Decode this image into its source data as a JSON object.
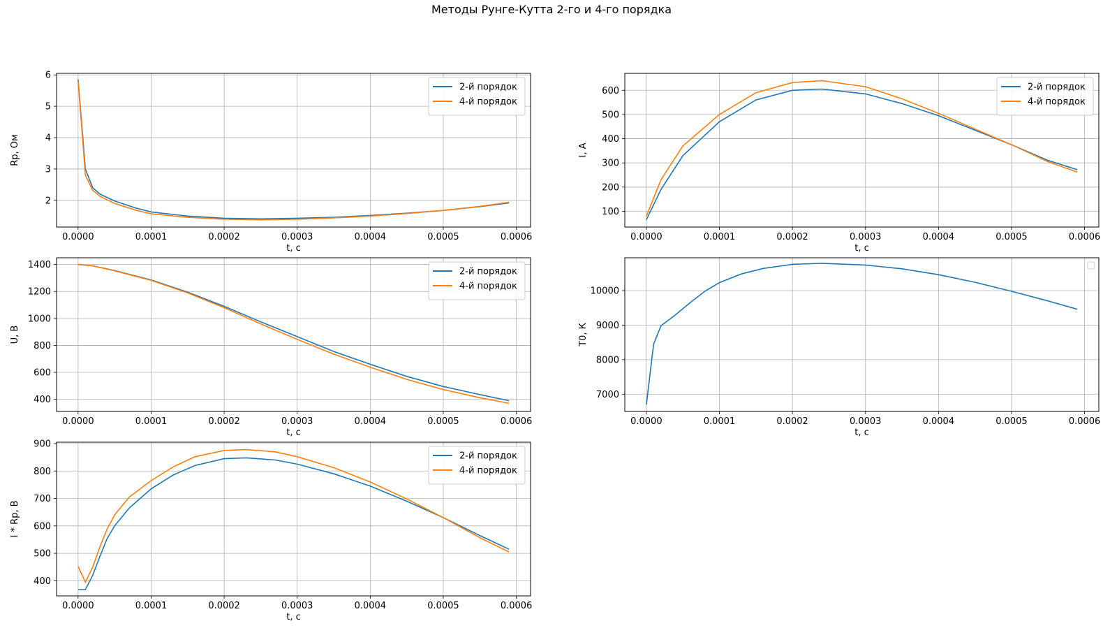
{
  "suptitle": "Методы Рунге-Кутта 2-го и 4-го порядка",
  "colors": {
    "series2": "#1f77b4",
    "series4": "#ff7f0e",
    "grid": "#b0b0b0",
    "axis": "#000000"
  },
  "chart_data": [
    {
      "id": "rp",
      "type": "line",
      "xlabel": "t, с",
      "ylabel": "Rp, Ом",
      "xlim": [
        -2.95e-05,
        0.0006195
      ],
      "ylim": [
        1.15,
        6.05
      ],
      "xticks": [
        0,
        0.0001,
        0.0002,
        0.0003,
        0.0004,
        0.0005,
        0.0006
      ],
      "xtick_labels": [
        "0.0000",
        "0.0001",
        "0.0002",
        "0.0003",
        "0.0004",
        "0.0005",
        "0.0006"
      ],
      "yticks": [
        2,
        3,
        4,
        5,
        6
      ],
      "ytick_labels": [
        "2",
        "3",
        "4",
        "5",
        "6"
      ],
      "grid": true,
      "legend": "upper right",
      "series": [
        {
          "name": "2-й порядок",
          "x": [
            0,
            1e-05,
            2e-05,
            3e-05,
            5e-05,
            8e-05,
            0.0001,
            0.00015,
            0.0002,
            0.00025,
            0.0003,
            0.00035,
            0.0004,
            0.00045,
            0.0005,
            0.00055,
            0.00059
          ],
          "y": [
            5.85,
            3.0,
            2.4,
            2.2,
            1.98,
            1.75,
            1.63,
            1.5,
            1.43,
            1.41,
            1.43,
            1.46,
            1.52,
            1.59,
            1.68,
            1.8,
            1.92
          ]
        },
        {
          "name": "4-й порядок",
          "x": [
            0,
            1e-05,
            2e-05,
            3e-05,
            5e-05,
            8e-05,
            0.0001,
            0.00015,
            0.0002,
            0.00025,
            0.0003,
            0.00035,
            0.0004,
            0.00045,
            0.0005,
            0.00055,
            0.00059
          ],
          "y": [
            5.8,
            2.8,
            2.32,
            2.13,
            1.9,
            1.68,
            1.57,
            1.46,
            1.4,
            1.38,
            1.4,
            1.44,
            1.5,
            1.58,
            1.68,
            1.81,
            1.94
          ]
        }
      ]
    },
    {
      "id": "i",
      "type": "line",
      "xlabel": "t, с",
      "ylabel": "I, А",
      "xlim": [
        -2.95e-05,
        0.0006195
      ],
      "ylim": [
        35,
        670
      ],
      "xticks": [
        0,
        0.0001,
        0.0002,
        0.0003,
        0.0004,
        0.0005,
        0.0006
      ],
      "xtick_labels": [
        "0.0000",
        "0.0001",
        "0.0002",
        "0.0003",
        "0.0004",
        "0.0005",
        "0.0006"
      ],
      "yticks": [
        100,
        200,
        300,
        400,
        500,
        600
      ],
      "ytick_labels": [
        "100",
        "200",
        "300",
        "400",
        "500",
        "600"
      ],
      "grid": true,
      "legend": "upper right",
      "series": [
        {
          "name": "2-й порядок",
          "x": [
            0,
            2e-05,
            5e-05,
            0.0001,
            0.00015,
            0.0002,
            0.00024,
            0.0003,
            0.00035,
            0.0004,
            0.00045,
            0.0005,
            0.00055,
            0.00059
          ],
          "y": [
            65,
            190,
            330,
            470,
            560,
            600,
            605,
            585,
            545,
            495,
            435,
            375,
            310,
            272
          ]
        },
        {
          "name": "4-й порядок",
          "x": [
            0,
            2e-05,
            5e-05,
            0.0001,
            0.00015,
            0.0002,
            0.00024,
            0.0003,
            0.00035,
            0.0004,
            0.00045,
            0.0005,
            0.00055,
            0.00059
          ],
          "y": [
            80,
            230,
            370,
            500,
            590,
            632,
            640,
            615,
            565,
            505,
            440,
            375,
            305,
            262
          ]
        }
      ]
    },
    {
      "id": "u",
      "type": "line",
      "xlabel": "t, с",
      "ylabel": "U, В",
      "xlim": [
        -2.95e-05,
        0.0006195
      ],
      "ylim": [
        310,
        1450
      ],
      "xticks": [
        0,
        0.0001,
        0.0002,
        0.0003,
        0.0004,
        0.0005,
        0.0006
      ],
      "xtick_labels": [
        "0.0000",
        "0.0001",
        "0.0002",
        "0.0003",
        "0.0004",
        "0.0005",
        "0.0006"
      ],
      "yticks": [
        400,
        600,
        800,
        1000,
        1200,
        1400
      ],
      "ytick_labels": [
        "400",
        "600",
        "800",
        "1000",
        "1200",
        "1400"
      ],
      "grid": true,
      "legend": "upper right",
      "series": [
        {
          "name": "2-й порядок",
          "x": [
            0,
            2e-05,
            5e-05,
            0.0001,
            0.00015,
            0.0002,
            0.00025,
            0.0003,
            0.00035,
            0.0004,
            0.00045,
            0.0005,
            0.00055,
            0.00059
          ],
          "y": [
            1400,
            1390,
            1355,
            1285,
            1195,
            1090,
            975,
            865,
            755,
            660,
            570,
            495,
            435,
            390
          ]
        },
        {
          "name": "4-й порядок",
          "x": [
            0,
            2e-05,
            5e-05,
            0.0001,
            0.00015,
            0.0002,
            0.00025,
            0.0003,
            0.00035,
            0.0004,
            0.00045,
            0.0005,
            0.00055,
            0.00059
          ],
          "y": [
            1400,
            1390,
            1353,
            1282,
            1190,
            1080,
            960,
            845,
            735,
            638,
            548,
            472,
            412,
            370
          ]
        }
      ]
    },
    {
      "id": "t0",
      "type": "line",
      "xlabel": "t, с",
      "ylabel": "T0, К",
      "xlim": [
        -2.95e-05,
        0.0006195
      ],
      "ylim": [
        6500,
        10950
      ],
      "xticks": [
        0,
        0.0001,
        0.0002,
        0.0003,
        0.0004,
        0.0005,
        0.0006
      ],
      "xtick_labels": [
        "0.0000",
        "0.0001",
        "0.0002",
        "0.0003",
        "0.0004",
        "0.0005",
        "0.0006"
      ],
      "yticks": [
        7000,
        8000,
        9000,
        10000
      ],
      "ytick_labels": [
        "7000",
        "8000",
        "9000",
        "10000"
      ],
      "grid": true,
      "legend": "upper right (empty)",
      "series": [
        {
          "name": "",
          "x": [
            0,
            1e-05,
            2e-05,
            4e-05,
            6e-05,
            8e-05,
            0.0001,
            0.00013,
            0.00016,
            0.0002,
            0.00024,
            0.0003,
            0.00035,
            0.0004,
            0.00045,
            0.0005,
            0.00055,
            0.00059
          ],
          "y": [
            6700,
            8450,
            8980,
            9300,
            9650,
            9980,
            10230,
            10480,
            10640,
            10760,
            10790,
            10740,
            10630,
            10460,
            10240,
            9980,
            9700,
            9460
          ]
        }
      ]
    },
    {
      "id": "irp",
      "type": "line",
      "xlabel": "t, с",
      "ylabel": "I * Rp, В",
      "xlim": [
        -2.95e-05,
        0.0006195
      ],
      "ylim": [
        345,
        905
      ],
      "xticks": [
        0,
        0.0001,
        0.0002,
        0.0003,
        0.0004,
        0.0005,
        0.0006
      ],
      "xtick_labels": [
        "0.0000",
        "0.0001",
        "0.0002",
        "0.0003",
        "0.0004",
        "0.0005",
        "0.0006"
      ],
      "yticks": [
        400,
        500,
        600,
        700,
        800,
        900
      ],
      "ytick_labels": [
        "400",
        "500",
        "600",
        "700",
        "800",
        "900"
      ],
      "grid": true,
      "legend": "upper right",
      "series": [
        {
          "name": "2-й порядок",
          "x": [
            0,
            1e-05,
            2e-05,
            3e-05,
            4e-05,
            5e-05,
            7e-05,
            0.0001,
            0.00013,
            0.00016,
            0.0002,
            0.00023,
            0.00027,
            0.0003,
            0.00035,
            0.0004,
            0.00045,
            0.0005,
            0.00055,
            0.00059
          ],
          "y": [
            368,
            368,
            420,
            490,
            555,
            600,
            665,
            735,
            785,
            820,
            845,
            848,
            840,
            825,
            790,
            745,
            690,
            630,
            565,
            515
          ]
        },
        {
          "name": "4-й порядок",
          "x": [
            0,
            1e-05,
            2e-05,
            3e-05,
            4e-05,
            5e-05,
            7e-05,
            0.0001,
            0.00013,
            0.00016,
            0.0002,
            0.00023,
            0.00027,
            0.0003,
            0.00035,
            0.0004,
            0.00045,
            0.0005,
            0.00055,
            0.00059
          ],
          "y": [
            452,
            395,
            450,
            525,
            590,
            640,
            705,
            765,
            815,
            852,
            875,
            878,
            870,
            852,
            812,
            760,
            698,
            630,
            557,
            505
          ]
        }
      ]
    }
  ]
}
